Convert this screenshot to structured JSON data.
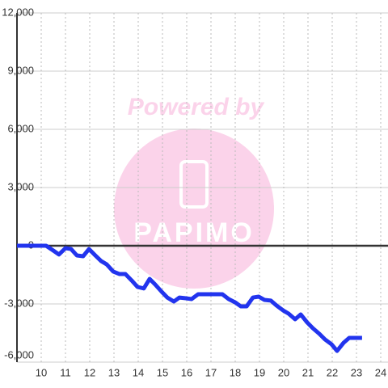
{
  "chart_data": {
    "type": "line",
    "watermark": "Powered by",
    "watermark_logo": "PAPIMO",
    "x": [
      9,
      10.2,
      10.5,
      10.73,
      11,
      11.23,
      11.47,
      11.73,
      11.97,
      12.23,
      12.47,
      12.7,
      12.97,
      13.23,
      13.47,
      13.73,
      13.97,
      14.23,
      14.47,
      14.7,
      14.97,
      15.2,
      15.47,
      15.7,
      15.97,
      16.2,
      16.47,
      16.97,
      17.47,
      17.73,
      18,
      18.23,
      18.47,
      18.73,
      18.97,
      19.2,
      19.47,
      19.7,
      19.97,
      20.2,
      20.47,
      20.7,
      20.97,
      21.2,
      21.47,
      21.7,
      21.97,
      22.2,
      22.47,
      22.7,
      23.23
    ],
    "series": [
      {
        "color": "#2234ee",
        "values": [
          0,
          0,
          -250,
          -450,
          -125,
          -170,
          -500,
          -540,
          -170,
          -500,
          -790,
          -960,
          -1330,
          -1460,
          -1460,
          -1790,
          -2125,
          -2200,
          -1710,
          -2000,
          -2375,
          -2670,
          -2875,
          -2670,
          -2710,
          -2750,
          -2500,
          -2500,
          -2500,
          -2750,
          -2920,
          -3125,
          -3125,
          -2670,
          -2625,
          -2790,
          -2830,
          -3080,
          -3330,
          -3500,
          -3790,
          -3540,
          -3960,
          -4250,
          -4540,
          -4830,
          -5080,
          -5420,
          -5000,
          -4750,
          -4750
        ]
      }
    ],
    "xlim": [
      9,
      24.3
    ],
    "xticks": [
      10,
      11,
      12,
      13,
      14,
      15,
      16,
      17,
      18,
      19,
      20,
      21,
      22,
      23,
      24
    ],
    "ylim": [
      -6000,
      12000
    ],
    "yticks": [
      {
        "value": -6000,
        "label": "-6,000"
      },
      {
        "value": -3000,
        "label": "-3,000"
      },
      0,
      {
        "value": 3000,
        "label": "3,000"
      },
      {
        "value": 6000,
        "label": "6,000"
      },
      {
        "value": 9000,
        "label": "9,000"
      },
      {
        "value": 12000,
        "label": "12,000"
      }
    ],
    "grid": true
  }
}
